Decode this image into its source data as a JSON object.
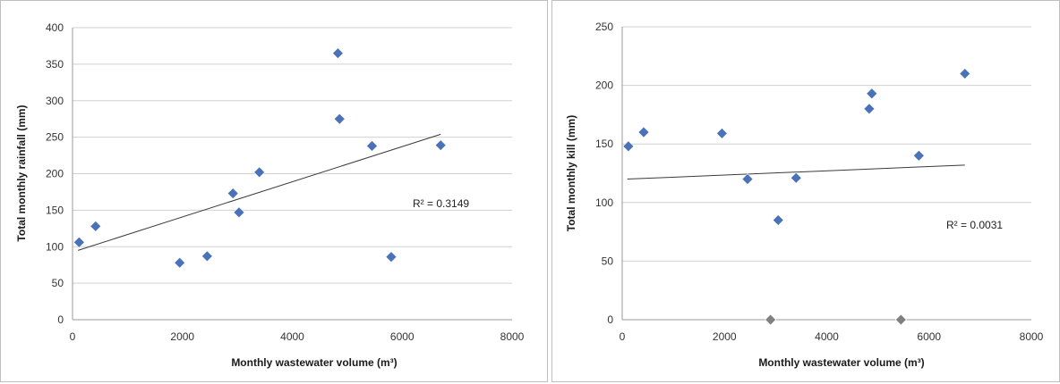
{
  "chart_data": [
    {
      "type": "scatter",
      "title": "",
      "xlabel": "Monthly wastewater volume (m³)",
      "ylabel": "Total monthly rainfall (mm)",
      "xlim": [
        0,
        8000
      ],
      "ylim": [
        0,
        400
      ],
      "xticks": [
        "0",
        "2000",
        "4000",
        "6000",
        "8000"
      ],
      "yticks": [
        "0",
        "50",
        "100",
        "150",
        "200",
        "250",
        "300",
        "350",
        "400"
      ],
      "grid": true,
      "series": [
        {
          "color": "#4a72b8",
          "marker": "diamond",
          "points": [
            {
              "x": 120,
              "y": 106
            },
            {
              "x": 420,
              "y": 128
            },
            {
              "x": 1950,
              "y": 78
            },
            {
              "x": 2450,
              "y": 87
            },
            {
              "x": 2920,
              "y": 173
            },
            {
              "x": 3030,
              "y": 147
            },
            {
              "x": 3400,
              "y": 202
            },
            {
              "x": 4830,
              "y": 365
            },
            {
              "x": 4860,
              "y": 275
            },
            {
              "x": 5450,
              "y": 238
            },
            {
              "x": 5800,
              "y": 86
            },
            {
              "x": 6700,
              "y": 239
            }
          ]
        }
      ],
      "trendline": {
        "x": [
          100,
          6700
        ],
        "y": [
          95,
          254
        ]
      },
      "annotation": "R² = 0.3149"
    },
    {
      "type": "scatter",
      "title": "",
      "xlabel": "Monthly wastewater volume (m³)",
      "ylabel": "Total monthly kill (mm)",
      "xlim": [
        0,
        8000
      ],
      "ylim": [
        0,
        250
      ],
      "xticks": [
        "0",
        "2000",
        "4000",
        "6000",
        "8000"
      ],
      "yticks": [
        "0",
        "50",
        "100",
        "150",
        "200",
        "250"
      ],
      "grid": true,
      "series": [
        {
          "color": "#4a72b8",
          "marker": "diamond",
          "points": [
            {
              "x": 120,
              "y": 148
            },
            {
              "x": 420,
              "y": 160
            },
            {
              "x": 1950,
              "y": 159
            },
            {
              "x": 2450,
              "y": 120
            },
            {
              "x": 3050,
              "y": 85
            },
            {
              "x": 3400,
              "y": 121
            },
            {
              "x": 4830,
              "y": 180
            },
            {
              "x": 4880,
              "y": 193
            },
            {
              "x": 5800,
              "y": 140
            },
            {
              "x": 6700,
              "y": 210
            }
          ]
        },
        {
          "color": "#808080",
          "marker": "diamond",
          "points": [
            {
              "x": 2900,
              "y": 0
            },
            {
              "x": 5450,
              "y": 0
            }
          ]
        }
      ],
      "trendline": {
        "x": [
          100,
          6700
        ],
        "y": [
          120,
          132
        ]
      },
      "annotation": "R² = 0.0031"
    }
  ]
}
